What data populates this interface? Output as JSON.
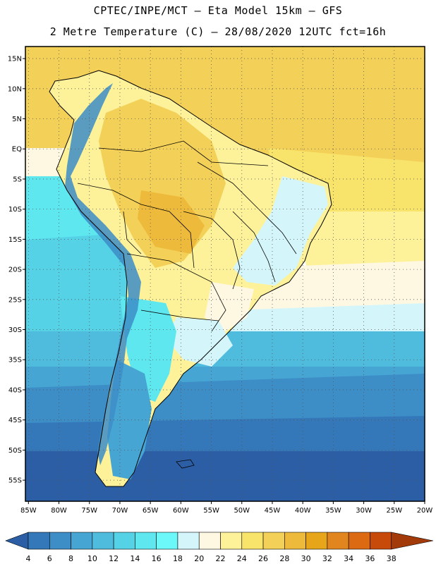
{
  "header": {
    "line1": "CPTEC/INPE/MCT –  Eta Model 15km – GFS",
    "line2": "2 Metre Temperature (C) – 28/08/2020 12UTC fct=16h"
  },
  "map": {
    "lat_labels": [
      "15N",
      "10N",
      "5N",
      "EQ",
      "5S",
      "10S",
      "15S",
      "20S",
      "25S",
      "30S",
      "35S",
      "40S",
      "45S",
      "50S",
      "55S"
    ],
    "lat_values": [
      15,
      10,
      5,
      0,
      -5,
      -10,
      -15,
      -20,
      -25,
      -30,
      -35,
      -40,
      -45,
      -50,
      -55
    ],
    "lon_labels": [
      "85W",
      "80W",
      "75W",
      "70W",
      "65W",
      "60W",
      "55W",
      "50W",
      "45W",
      "40W",
      "35W",
      "30W",
      "25W",
      "20W"
    ],
    "lon_values": [
      -85,
      -80,
      -75,
      -70,
      -65,
      -60,
      -55,
      -50,
      -45,
      -40,
      -35,
      -30,
      -25,
      -20
    ],
    "lon_range": [
      -85.5,
      -20
    ],
    "lat_range": [
      -58.5,
      17
    ]
  },
  "colorbar": {
    "labels": [
      "4",
      "6",
      "8",
      "10",
      "12",
      "14",
      "16",
      "18",
      "20",
      "22",
      "24",
      "26",
      "28",
      "30",
      "32",
      "34",
      "36",
      "38"
    ],
    "colors": [
      "#2c5ea6",
      "#3478b9",
      "#3d8dc7",
      "#46a5d3",
      "#4fbcde",
      "#55d2e6",
      "#5fe7f0",
      "#6cf8f8",
      "#d4f6fb",
      "#fef8e3",
      "#fdf29a",
      "#f8e36b",
      "#f3d057",
      "#eeba3c",
      "#e7a51a",
      "#e1861e",
      "#db6a13",
      "#c84a0b",
      "#a23a0a"
    ]
  }
}
